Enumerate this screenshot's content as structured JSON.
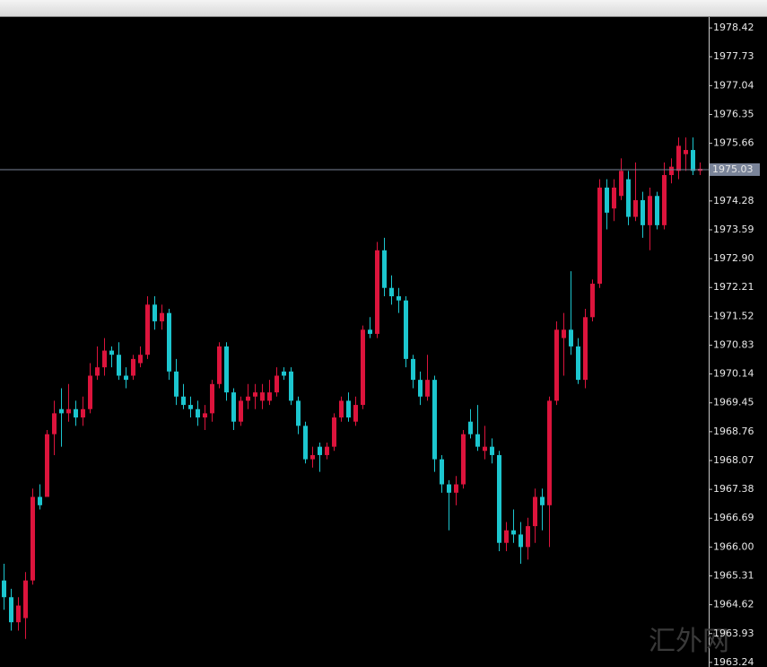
{
  "chart_data": {
    "type": "candlestick",
    "open": [
      1965.2,
      1964.8,
      1964.2,
      1964.3,
      1965.2,
      1967.2,
      1967.2,
      1968.7,
      1969.3,
      1969.2,
      1969.3,
      1969.1,
      1969.3,
      1970.1,
      1970.3,
      1970.7,
      1970.6,
      1970.1,
      1970.1,
      1970.4,
      1970.6,
      1971.8,
      1971.4,
      1971.6,
      1970.2,
      1969.6,
      1969.4,
      1969.3,
      1969.1,
      1969.2,
      1969.9,
      1970.8,
      1969.7,
      1969.0,
      1969.5,
      1969.6,
      1969.5,
      1969.5,
      1969.7,
      1970.2,
      1970.2,
      1969.5,
      1968.9,
      1968.1,
      1968.4,
      1968.2,
      1968.4,
      1969.1,
      1969.5,
      1969.0,
      1969.4,
      1971.2,
      1971.1,
      1973.1,
      1972.2,
      1972.0,
      1971.9,
      1970.5,
      1970.0,
      1969.6,
      1970.0,
      1968.1,
      1967.5,
      1967.3,
      1967.5,
      1969.0,
      1968.7,
      1968.3,
      1968.4,
      1968.2,
      1966.1,
      1966.4,
      1966.3,
      1966.0,
      1966.5,
      1967.2,
      1967.0,
      1969.5,
      1971.0,
      1971.2,
      1970.8,
      1970.0,
      1971.5,
      1972.3,
      1974.6,
      1974.1,
      1974.4,
      1974.8,
      1973.9,
      1974.3,
      1973.7,
      1974.4,
      1973.7,
      1974.9,
      1975.0,
      1975.4,
      1975.5,
      1975.0
    ],
    "high": [
      1965.6,
      1965.0,
      1964.8,
      1965.4,
      1967.4,
      1967.5,
      1968.8,
      1969.5,
      1969.8,
      1969.9,
      1969.5,
      1969.6,
      1970.4,
      1970.8,
      1971.0,
      1970.8,
      1970.9,
      1970.3,
      1970.6,
      1970.8,
      1972.0,
      1972.0,
      1971.8,
      1971.7,
      1970.5,
      1969.9,
      1969.6,
      1969.5,
      1969.4,
      1970.0,
      1970.9,
      1970.9,
      1969.8,
      1969.6,
      1969.9,
      1969.9,
      1969.9,
      1970.0,
      1970.3,
      1970.3,
      1970.3,
      1969.6,
      1969.0,
      1968.4,
      1968.5,
      1968.5,
      1969.2,
      1969.6,
      1969.7,
      1969.6,
      1971.3,
      1971.5,
      1973.3,
      1973.4,
      1972.5,
      1972.2,
      1972.0,
      1970.6,
      1970.2,
      1970.6,
      1970.1,
      1968.2,
      1967.6,
      1967.7,
      1968.8,
      1969.3,
      1969.4,
      1968.9,
      1968.6,
      1968.3,
      1966.6,
      1966.9,
      1966.6,
      1966.7,
      1967.4,
      1967.4,
      1969.6,
      1971.4,
      1971.6,
      1972.6,
      1971.0,
      1971.7,
      1972.4,
      1974.8,
      1974.8,
      1974.8,
      1975.3,
      1975.0,
      1975.2,
      1974.5,
      1974.6,
      1974.5,
      1975.2,
      1975.3,
      1975.8,
      1975.8,
      1975.8,
      1975.2
    ],
    "low": [
      1964.5,
      1964.0,
      1964.0,
      1963.8,
      1965.1,
      1966.9,
      1967.2,
      1968.2,
      1968.4,
      1969.0,
      1968.9,
      1968.9,
      1969.2,
      1970.0,
      1970.1,
      1970.3,
      1970.0,
      1969.8,
      1970.0,
      1970.3,
      1970.5,
      1971.2,
      1971.2,
      1970.0,
      1969.4,
      1969.3,
      1969.1,
      1968.9,
      1968.8,
      1969.0,
      1969.8,
      1969.5,
      1968.8,
      1968.9,
      1969.3,
      1969.3,
      1969.3,
      1969.4,
      1969.6,
      1970.0,
      1969.4,
      1968.7,
      1968.0,
      1967.9,
      1967.8,
      1968.1,
      1968.3,
      1969.0,
      1969.0,
      1968.9,
      1969.3,
      1971.0,
      1971.0,
      1972.0,
      1971.8,
      1971.6,
      1970.3,
      1969.8,
      1969.4,
      1969.5,
      1967.8,
      1967.3,
      1966.4,
      1967.0,
      1967.4,
      1968.6,
      1968.3,
      1968.1,
      1968.0,
      1965.9,
      1965.9,
      1966.1,
      1965.6,
      1965.7,
      1966.1,
      1966.4,
      1966.0,
      1969.4,
      1970.1,
      1970.6,
      1969.9,
      1969.8,
      1971.4,
      1972.2,
      1973.6,
      1973.8,
      1974.3,
      1973.7,
      1973.8,
      1973.4,
      1973.1,
      1973.6,
      1973.6,
      1974.7,
      1974.8,
      1975.0,
      1974.9,
      1974.9
    ],
    "close": [
      1964.8,
      1964.2,
      1964.6,
      1965.2,
      1967.2,
      1967.0,
      1968.7,
      1969.2,
      1969.2,
      1969.3,
      1969.1,
      1969.3,
      1970.1,
      1970.3,
      1970.7,
      1970.6,
      1970.1,
      1970.0,
      1970.5,
      1970.6,
      1971.8,
      1971.4,
      1971.6,
      1970.2,
      1969.6,
      1969.4,
      1969.3,
      1969.1,
      1969.2,
      1969.9,
      1970.8,
      1969.7,
      1969.0,
      1969.5,
      1969.6,
      1969.7,
      1969.7,
      1969.7,
      1970.1,
      1970.1,
      1969.5,
      1968.9,
      1968.1,
      1968.2,
      1968.2,
      1968.4,
      1969.1,
      1969.5,
      1969.1,
      1969.4,
      1971.2,
      1971.1,
      1973.1,
      1972.2,
      1972.0,
      1971.9,
      1970.5,
      1970.0,
      1969.6,
      1970.0,
      1968.1,
      1967.5,
      1967.3,
      1967.5,
      1968.7,
      1968.7,
      1968.4,
      1968.4,
      1968.2,
      1966.1,
      1966.4,
      1966.3,
      1966.0,
      1966.5,
      1967.2,
      1967.0,
      1969.5,
      1971.2,
      1971.2,
      1970.8,
      1970.0,
      1971.5,
      1972.3,
      1974.6,
      1974.0,
      1974.6,
      1975.0,
      1973.9,
      1974.3,
      1973.7,
      1974.4,
      1973.7,
      1974.9,
      1975.1,
      1975.6,
      1975.5,
      1975.0,
      1975.05
    ],
    "bull_color": "#dc143c",
    "bear_color": "#1cc6cf",
    "ylim": [
      1963.13,
      1978.68
    ],
    "yticks": [
      1978.42,
      1977.73,
      1977.04,
      1976.35,
      1975.66,
      1974.28,
      1973.59,
      {
        "value": 1972.9,
        "label": "1972.90"
      },
      1972.21,
      1971.52,
      1970.83,
      1970.14,
      1969.45,
      1968.76,
      1968.07,
      1967.38,
      1966.69,
      {
        "value": 1966,
        "label": "1966.00"
      },
      1965.31,
      1964.62,
      1963.93,
      1963.24
    ],
    "current_price": {
      "value": 1975.03,
      "label": "1975.03"
    },
    "watermark": "汇外网"
  }
}
